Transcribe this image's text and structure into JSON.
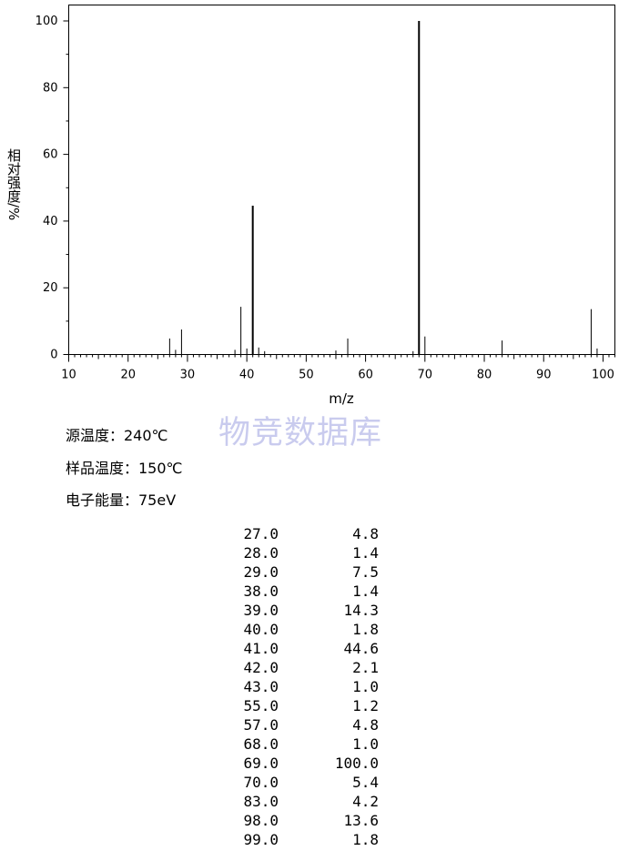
{
  "chart_data": {
    "type": "bar",
    "xlabel": "m/z",
    "ylabel": "相对强度/%",
    "xlim": [
      10,
      102
    ],
    "ylim": [
      0,
      100
    ],
    "x_ticks": [
      "10",
      "20",
      "30",
      "40",
      "50",
      "60",
      "70",
      "80",
      "90",
      "100"
    ],
    "y_ticks": [
      "0",
      "20",
      "40",
      "60",
      "80",
      "100"
    ],
    "grid": false,
    "peaks": [
      {
        "mz": "27.0",
        "abundance": "4.8"
      },
      {
        "mz": "28.0",
        "abundance": "1.4"
      },
      {
        "mz": "29.0",
        "abundance": "7.5"
      },
      {
        "mz": "38.0",
        "abundance": "1.4"
      },
      {
        "mz": "39.0",
        "abundance": "14.3"
      },
      {
        "mz": "40.0",
        "abundance": "1.8"
      },
      {
        "mz": "41.0",
        "abundance": "44.6"
      },
      {
        "mz": "42.0",
        "abundance": "2.1"
      },
      {
        "mz": "43.0",
        "abundance": "1.0"
      },
      {
        "mz": "55.0",
        "abundance": "1.2"
      },
      {
        "mz": "57.0",
        "abundance": "4.8"
      },
      {
        "mz": "68.0",
        "abundance": "1.0"
      },
      {
        "mz": "69.0",
        "abundance": "100.0"
      },
      {
        "mz": "70.0",
        "abundance": "5.4"
      },
      {
        "mz": "83.0",
        "abundance": "4.2"
      },
      {
        "mz": "98.0",
        "abundance": "13.6"
      },
      {
        "mz": "99.0",
        "abundance": "1.8"
      }
    ]
  },
  "watermark": "物竞数据库",
  "conditions": {
    "source_temp": "源温度：240℃",
    "sample_temp": "样品温度：150℃",
    "electron_energy": "电子能量：75eV"
  }
}
